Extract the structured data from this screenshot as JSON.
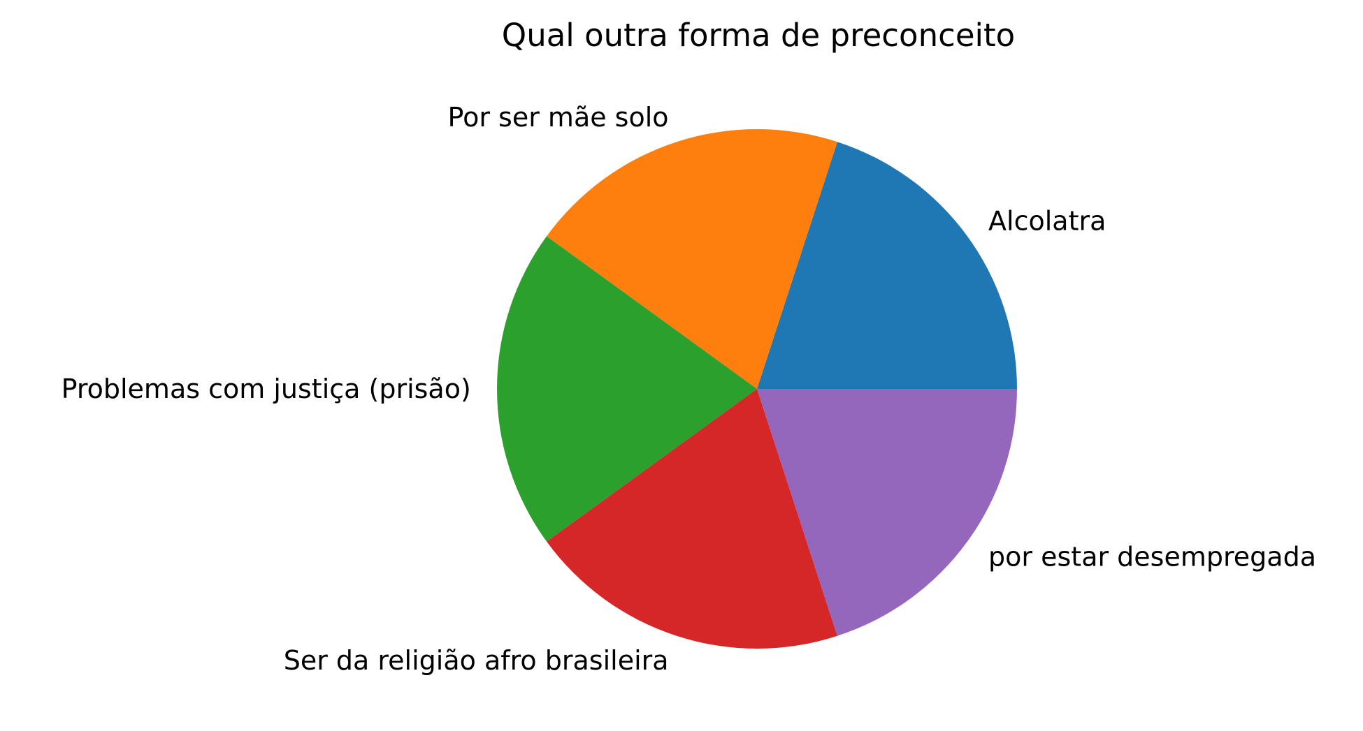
{
  "chart_data": {
    "type": "pie",
    "title": "Qual outra forma de preconceito",
    "labels": [
      "Alcolatra",
      "Por ser mãe solo",
      "Problemas com justiça (prisão)",
      "Ser da religião afro brasileira",
      "por estar desempregada"
    ],
    "values": [
      1,
      1,
      1,
      1,
      1
    ],
    "colors": [
      "#1f77b4",
      "#ff7f0e",
      "#2ca02c",
      "#d62728",
      "#9467bd"
    ],
    "start_angle_deg": 0,
    "direction": "counterclockwise",
    "legend": "none"
  }
}
